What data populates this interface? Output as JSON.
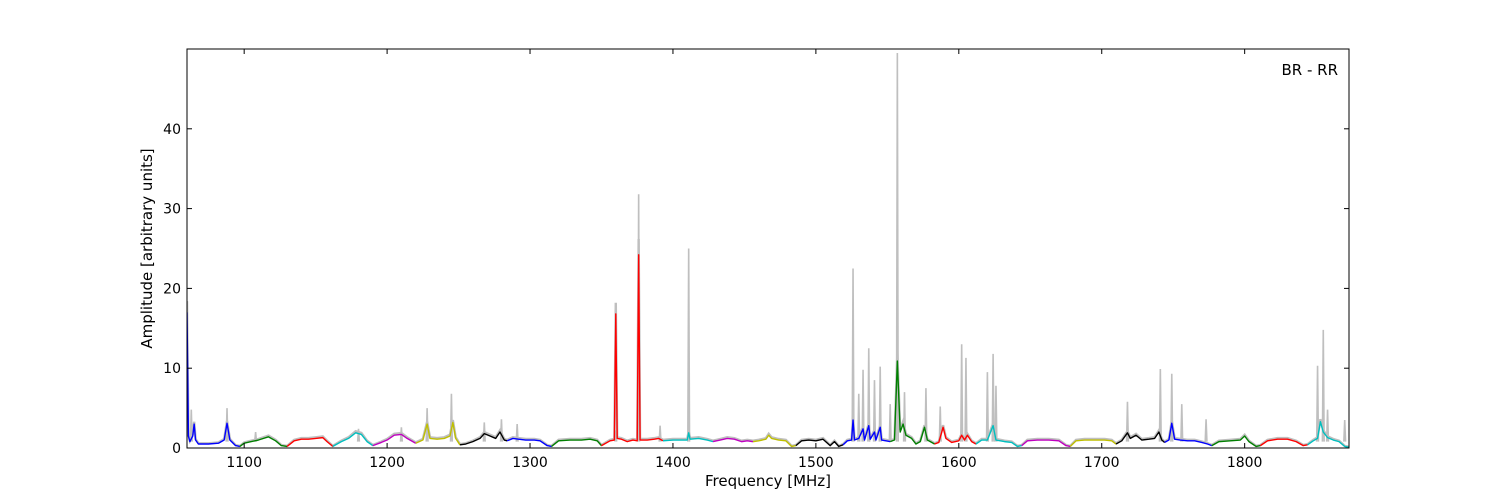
{
  "chart_data": {
    "type": "line",
    "title": "",
    "xlabel": "Frequency [MHz]",
    "ylabel": "Amplitude [arbitrary units]",
    "annotation": "BR - RR",
    "xlim": [
      1060,
      1873
    ],
    "ylim": [
      0,
      50
    ],
    "xticks": [
      1100,
      1200,
      1300,
      1400,
      1500,
      1600,
      1700,
      1800
    ],
    "yticks": [
      0,
      10,
      20,
      30,
      40
    ],
    "grid": false,
    "legend": "none",
    "background_series": {
      "color": "#bfbfbf",
      "peaks": [
        {
          "x": 1063,
          "y": 4.8
        },
        {
          "x": 1088,
          "y": 5.0
        },
        {
          "x": 1108,
          "y": 2.0
        },
        {
          "x": 1180,
          "y": 2.4
        },
        {
          "x": 1210,
          "y": 2.6
        },
        {
          "x": 1228,
          "y": 5.0
        },
        {
          "x": 1245,
          "y": 6.8
        },
        {
          "x": 1268,
          "y": 3.2
        },
        {
          "x": 1280,
          "y": 3.6
        },
        {
          "x": 1291,
          "y": 3.0
        },
        {
          "x": 1360,
          "y": 2.2
        },
        {
          "x": 1376,
          "y": 31.8
        },
        {
          "x": 1391,
          "y": 2.8
        },
        {
          "x": 1411,
          "y": 25.0
        },
        {
          "x": 1526,
          "y": 22.5
        },
        {
          "x": 1530,
          "y": 6.8
        },
        {
          "x": 1533,
          "y": 9.8
        },
        {
          "x": 1537,
          "y": 12.5
        },
        {
          "x": 1541,
          "y": 8.5
        },
        {
          "x": 1545,
          "y": 10.2
        },
        {
          "x": 1552,
          "y": 5.5
        },
        {
          "x": 1557,
          "y": 49.5
        },
        {
          "x": 1562,
          "y": 7.0
        },
        {
          "x": 1577,
          "y": 7.5
        },
        {
          "x": 1587,
          "y": 5.2
        },
        {
          "x": 1602,
          "y": 13.0
        },
        {
          "x": 1605,
          "y": 11.3
        },
        {
          "x": 1620,
          "y": 9.5
        },
        {
          "x": 1624,
          "y": 11.8
        },
        {
          "x": 1626,
          "y": 7.8
        },
        {
          "x": 1718,
          "y": 5.8
        },
        {
          "x": 1741,
          "y": 9.9
        },
        {
          "x": 1749,
          "y": 9.3
        },
        {
          "x": 1756,
          "y": 5.5
        },
        {
          "x": 1773,
          "y": 3.6
        },
        {
          "x": 1851,
          "y": 10.3
        },
        {
          "x": 1855,
          "y": 14.8
        },
        {
          "x": 1858,
          "y": 4.8
        },
        {
          "x": 1870,
          "y": 3.5
        }
      ]
    },
    "series": [
      {
        "color": "#0000ff",
        "points": [
          [
            1060,
            17.0
          ],
          [
            1061,
            1.5
          ],
          [
            1062,
            0.8
          ],
          [
            1064,
            1.5
          ],
          [
            1065,
            3.0
          ],
          [
            1066,
            1.0
          ],
          [
            1068,
            0.5
          ],
          [
            1075,
            0.5
          ],
          [
            1082,
            0.6
          ],
          [
            1086,
            1.0
          ],
          [
            1088,
            3.1
          ],
          [
            1090,
            1.0
          ],
          [
            1094,
            0.3
          ],
          [
            1097,
            0.2
          ]
        ]
      },
      {
        "color": "#007f00",
        "points": [
          [
            1097,
            0.2
          ],
          [
            1100,
            0.6
          ],
          [
            1105,
            0.8
          ],
          [
            1110,
            1.0
          ],
          [
            1117,
            1.4
          ],
          [
            1122,
            0.9
          ],
          [
            1126,
            0.3
          ],
          [
            1130,
            0.2
          ]
        ]
      },
      {
        "color": "#ff0000",
        "points": [
          [
            1130,
            0.2
          ],
          [
            1135,
            0.9
          ],
          [
            1140,
            1.1
          ],
          [
            1145,
            1.1
          ],
          [
            1150,
            1.2
          ],
          [
            1155,
            1.3
          ],
          [
            1158,
            0.8
          ],
          [
            1162,
            0.2
          ]
        ]
      },
      {
        "color": "#00bfbf",
        "points": [
          [
            1162,
            0.2
          ],
          [
            1168,
            0.8
          ],
          [
            1173,
            1.2
          ],
          [
            1178,
            1.9
          ],
          [
            1182,
            1.7
          ],
          [
            1186,
            0.8
          ],
          [
            1190,
            0.3
          ]
        ]
      },
      {
        "color": "#bf00bf",
        "points": [
          [
            1190,
            0.3
          ],
          [
            1196,
            0.7
          ],
          [
            1200,
            1.0
          ],
          [
            1205,
            1.6
          ],
          [
            1210,
            1.7
          ],
          [
            1214,
            1.2
          ],
          [
            1218,
            0.8
          ],
          [
            1220,
            0.6
          ]
        ]
      },
      {
        "color": "#bfbf00",
        "points": [
          [
            1220,
            0.6
          ],
          [
            1225,
            1.0
          ],
          [
            1228,
            3.0
          ],
          [
            1230,
            1.2
          ],
          [
            1235,
            1.1
          ],
          [
            1240,
            1.2
          ],
          [
            1244,
            1.5
          ],
          [
            1246,
            3.2
          ],
          [
            1248,
            1.2
          ],
          [
            1251,
            0.4
          ]
        ]
      },
      {
        "color": "#000000",
        "points": [
          [
            1251,
            0.4
          ],
          [
            1255,
            0.5
          ],
          [
            1260,
            0.8
          ],
          [
            1265,
            1.2
          ],
          [
            1268,
            1.8
          ],
          [
            1272,
            1.5
          ],
          [
            1276,
            1.2
          ],
          [
            1279,
            2.0
          ],
          [
            1282,
            1.0
          ],
          [
            1284,
            0.9
          ]
        ]
      },
      {
        "color": "#0000ff",
        "points": [
          [
            1284,
            0.9
          ],
          [
            1288,
            1.2
          ],
          [
            1292,
            1.1
          ],
          [
            1297,
            1.0
          ],
          [
            1303,
            1.0
          ],
          [
            1307,
            0.9
          ],
          [
            1312,
            0.3
          ],
          [
            1315,
            0.2
          ]
        ]
      },
      {
        "color": "#007f00",
        "points": [
          [
            1315,
            0.2
          ],
          [
            1320,
            0.9
          ],
          [
            1328,
            1.0
          ],
          [
            1336,
            1.0
          ],
          [
            1342,
            1.1
          ],
          [
            1347,
            0.9
          ],
          [
            1350,
            0.3
          ]
        ]
      },
      {
        "color": "#ff0000",
        "points": [
          [
            1350,
            0.3
          ],
          [
            1356,
            0.9
          ],
          [
            1359,
            1.0
          ],
          [
            1360,
            16.8
          ],
          [
            1361,
            1.2
          ],
          [
            1364,
            1.1
          ],
          [
            1368,
            0.8
          ],
          [
            1372,
            1.0
          ],
          [
            1375,
            0.9
          ],
          [
            1376,
            24.2
          ],
          [
            1377,
            1.0
          ],
          [
            1382,
            1.0
          ],
          [
            1387,
            1.1
          ],
          [
            1390,
            1.2
          ],
          [
            1393,
            0.9
          ]
        ]
      },
      {
        "color": "#00bfbf",
        "points": [
          [
            1393,
            0.9
          ],
          [
            1400,
            1.0
          ],
          [
            1407,
            1.0
          ],
          [
            1410,
            1.0
          ],
          [
            1411,
            1.9
          ],
          [
            1412,
            1.1
          ],
          [
            1418,
            1.2
          ],
          [
            1424,
            1.0
          ],
          [
            1428,
            0.8
          ]
        ]
      },
      {
        "color": "#bf00bf",
        "points": [
          [
            1428,
            0.8
          ],
          [
            1433,
            1.0
          ],
          [
            1438,
            1.2
          ],
          [
            1443,
            1.1
          ],
          [
            1448,
            0.8
          ],
          [
            1452,
            0.9
          ],
          [
            1456,
            0.8
          ]
        ]
      },
      {
        "color": "#bfbf00",
        "points": [
          [
            1456,
            0.8
          ],
          [
            1460,
            0.9
          ],
          [
            1465,
            1.1
          ],
          [
            1467,
            1.6
          ],
          [
            1469,
            1.2
          ],
          [
            1474,
            1.0
          ],
          [
            1479,
            0.9
          ],
          [
            1483,
            0.2
          ],
          [
            1486,
            0.3
          ]
        ]
      },
      {
        "color": "#000000",
        "points": [
          [
            1486,
            0.3
          ],
          [
            1490,
            0.9
          ],
          [
            1495,
            1.0
          ],
          [
            1500,
            0.9
          ],
          [
            1505,
            1.1
          ],
          [
            1510,
            0.3
          ],
          [
            1513,
            0.8
          ],
          [
            1516,
            0.2
          ],
          [
            1519,
            0.4
          ]
        ]
      },
      {
        "color": "#0000ff",
        "points": [
          [
            1519,
            0.4
          ],
          [
            1522,
            0.9
          ],
          [
            1525,
            1.0
          ],
          [
            1526,
            3.5
          ],
          [
            1527,
            1.0
          ],
          [
            1530,
            1.2
          ],
          [
            1533,
            2.4
          ],
          [
            1534,
            1.0
          ],
          [
            1537,
            2.8
          ],
          [
            1538,
            1.1
          ],
          [
            1541,
            2.0
          ],
          [
            1542,
            1.0
          ],
          [
            1545,
            2.6
          ],
          [
            1546,
            1.0
          ],
          [
            1549,
            0.9
          ],
          [
            1552,
            0.8
          ]
        ]
      },
      {
        "color": "#007f00",
        "points": [
          [
            1552,
            0.8
          ],
          [
            1555,
            1.0
          ],
          [
            1557,
            10.9
          ],
          [
            1559,
            2.0
          ],
          [
            1561,
            3.0
          ],
          [
            1563,
            1.6
          ],
          [
            1567,
            1.2
          ],
          [
            1570,
            0.5
          ],
          [
            1573,
            0.8
          ],
          [
            1576,
            2.6
          ],
          [
            1578,
            1.0
          ],
          [
            1581,
            0.7
          ],
          [
            1583,
            0.5
          ]
        ]
      },
      {
        "color": "#ff0000",
        "points": [
          [
            1583,
            0.5
          ],
          [
            1586,
            0.7
          ],
          [
            1589,
            2.6
          ],
          [
            1591,
            1.2
          ],
          [
            1595,
            0.7
          ],
          [
            1600,
            0.9
          ],
          [
            1602,
            1.6
          ],
          [
            1604,
            1.0
          ],
          [
            1606,
            1.6
          ],
          [
            1609,
            0.8
          ],
          [
            1612,
            0.5
          ]
        ]
      },
      {
        "color": "#00bfbf",
        "points": [
          [
            1612,
            0.5
          ],
          [
            1616,
            1.0
          ],
          [
            1620,
            1.0
          ],
          [
            1624,
            2.8
          ],
          [
            1626,
            1.0
          ],
          [
            1632,
            0.8
          ],
          [
            1637,
            0.7
          ],
          [
            1641,
            0.2
          ],
          [
            1644,
            0.3
          ]
        ]
      },
      {
        "color": "#bf00bf",
        "points": [
          [
            1644,
            0.3
          ],
          [
            1648,
            0.9
          ],
          [
            1655,
            1.0
          ],
          [
            1663,
            1.0
          ],
          [
            1670,
            0.9
          ],
          [
            1675,
            0.3
          ],
          [
            1678,
            0.2
          ]
        ]
      },
      {
        "color": "#bfbf00",
        "points": [
          [
            1678,
            0.2
          ],
          [
            1682,
            0.9
          ],
          [
            1688,
            1.0
          ],
          [
            1695,
            1.0
          ],
          [
            1702,
            1.0
          ],
          [
            1707,
            0.9
          ],
          [
            1710,
            0.5
          ]
        ]
      },
      {
        "color": "#000000",
        "points": [
          [
            1710,
            0.5
          ],
          [
            1714,
            0.9
          ],
          [
            1718,
            1.9
          ],
          [
            1720,
            1.2
          ],
          [
            1724,
            1.6
          ],
          [
            1728,
            1.0
          ],
          [
            1733,
            1.1
          ],
          [
            1737,
            1.2
          ],
          [
            1740,
            2.0
          ],
          [
            1742,
            1.0
          ],
          [
            1744,
            0.7
          ]
        ]
      },
      {
        "color": "#0000ff",
        "points": [
          [
            1744,
            0.7
          ],
          [
            1747,
            1.0
          ],
          [
            1749,
            3.1
          ],
          [
            1751,
            1.1
          ],
          [
            1755,
            1.0
          ],
          [
            1760,
            0.9
          ],
          [
            1765,
            0.9
          ],
          [
            1770,
            0.7
          ],
          [
            1774,
            0.5
          ],
          [
            1777,
            0.3
          ]
        ]
      },
      {
        "color": "#007f00",
        "points": [
          [
            1777,
            0.3
          ],
          [
            1782,
            0.8
          ],
          [
            1790,
            0.9
          ],
          [
            1797,
            1.0
          ],
          [
            1800,
            1.5
          ],
          [
            1803,
            0.8
          ],
          [
            1808,
            0.2
          ],
          [
            1811,
            0.3
          ]
        ]
      },
      {
        "color": "#ff0000",
        "points": [
          [
            1811,
            0.3
          ],
          [
            1816,
            0.9
          ],
          [
            1823,
            1.1
          ],
          [
            1830,
            1.1
          ],
          [
            1836,
            0.8
          ],
          [
            1841,
            0.3
          ],
          [
            1844,
            0.4
          ]
        ]
      },
      {
        "color": "#00bfbf",
        "points": [
          [
            1844,
            0.4
          ],
          [
            1848,
            0.9
          ],
          [
            1851,
            1.2
          ],
          [
            1853,
            3.3
          ],
          [
            1855,
            2.0
          ],
          [
            1858,
            1.3
          ],
          [
            1862,
            1.0
          ],
          [
            1866,
            0.8
          ],
          [
            1870,
            0.2
          ],
          [
            1873,
            0.1
          ]
        ]
      }
    ]
  }
}
